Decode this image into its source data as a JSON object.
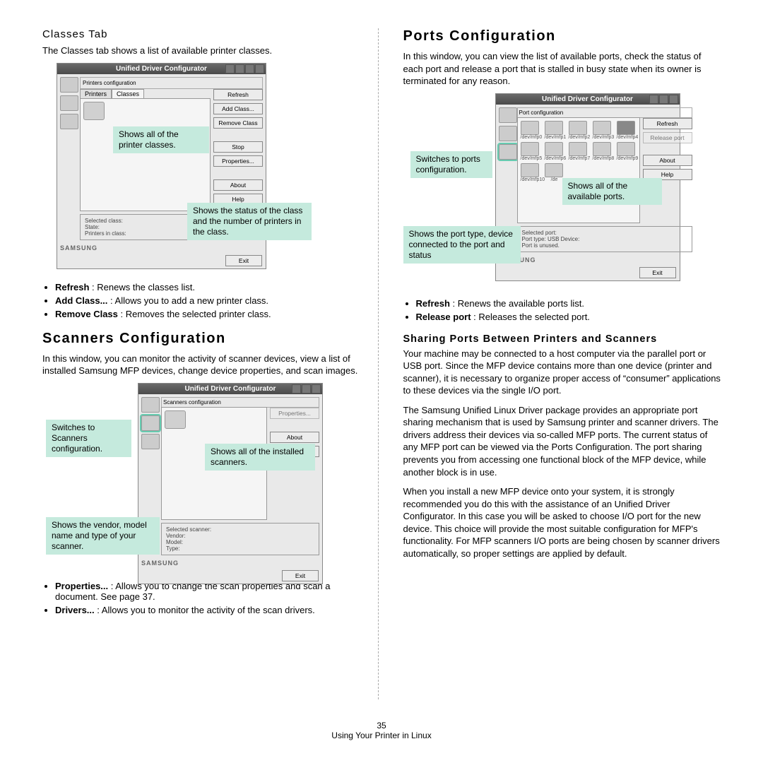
{
  "page_number": "35",
  "footer_text": "Using Your Printer in Linux",
  "left": {
    "classes_heading": "Classes Tab",
    "classes_intro": "The Classes tab shows a list of available printer classes.",
    "fig1": {
      "title": "Unified Driver Configurator",
      "tabs": [
        "Printers",
        "Classes"
      ],
      "buttons": [
        "Refresh",
        "Add Class...",
        "Remove Class",
        "Stop",
        "Properties...",
        "About",
        "Help"
      ],
      "status_label": "Selected class:",
      "status_lines": [
        "State:",
        "Printers in class:"
      ],
      "brand": "SAMSUNG",
      "exit": "Exit"
    },
    "callout1": "Shows all of the printer classes.",
    "callout2": "Shows the status of the class and the number of printers in the class.",
    "classes_bullets": [
      {
        "b": "Refresh",
        "t": " : Renews the classes list."
      },
      {
        "b": "Add Class...",
        "t": " : Allows you to add a new printer class."
      },
      {
        "b": "Remove Class",
        "t": " : Removes the selected printer class."
      }
    ],
    "scanners_heading": "Scanners Configuration",
    "scanners_intro": "In this window, you can monitor the activity of scanner devices, view a list of installed Samsung MFP devices, change device properties, and scan images.",
    "fig2": {
      "title": "Unified Driver Configurator",
      "section": "Scanners configuration",
      "buttons": [
        "Properties...",
        "About",
        "Help"
      ],
      "status_label": "Selected scanner:",
      "status_lines": [
        "Vendor:",
        "Model:",
        "Type:"
      ],
      "brand": "SAMSUNG",
      "exit": "Exit"
    },
    "callout3": "Switches to Scanners configuration.",
    "callout4": "Shows all of the installed scanners.",
    "callout5": "Shows the vendor, model name and type of your scanner.",
    "scanners_bullets": [
      {
        "b": "Properties...",
        "t": " : Allows you to change the scan properties and scan a document. See page 37."
      },
      {
        "b": "Drivers...",
        "t": " : Allows you to monitor the activity of the scan drivers."
      }
    ]
  },
  "right": {
    "ports_heading": "Ports Configuration",
    "ports_intro": "In this window, you can view the list of available ports, check the status of each port and release a port that is stalled in busy state when its owner is terminated for any reason.",
    "fig3": {
      "title": "Unified Driver Configurator",
      "section": "Port configuration",
      "port_labels": [
        "/dev/mfp0",
        "/dev/mfp1",
        "/dev/mfp2",
        "/dev/mfp3",
        "/dev/mfp4",
        "/dev/mfp5",
        "/dev/mfp6",
        "/dev/mfp7",
        "/dev/mfp8",
        "/dev/mfp9",
        "/dev/mfp10",
        "/de"
      ],
      "buttons": [
        "Refresh",
        "Release port",
        "About",
        "Help"
      ],
      "status_label": "Selected port:",
      "status_lines": [
        "Port type: USB   Device:",
        "Port is unused."
      ],
      "brand": "SAMSUNG",
      "exit": "Exit"
    },
    "callout6": "Switches to ports configuration.",
    "callout7": "Shows all of the available ports.",
    "callout8": "Shows the port type, device connected to the port and status",
    "ports_bullets": [
      {
        "b": "Refresh",
        "t": " : Renews the available ports list."
      },
      {
        "b": "Release port",
        "t": " : Releases the selected port."
      }
    ],
    "sharing_heading": "Sharing Ports Between Printers and Scanners",
    "sharing_p1": "Your machine may be connected to a host computer via the parallel port or USB port. Since the MFP device contains more than one device (printer and scanner), it is necessary to organize proper access of “consumer” applications to these devices via the single I/O port.",
    "sharing_p2": "The Samsung Unified Linux Driver package provides an appropriate port sharing mechanism that is used by Samsung printer and scanner drivers. The drivers address their devices via so-called MFP ports. The current status of any MFP port can be viewed via the Ports Configuration. The port sharing prevents you from accessing one functional block of the MFP device, while another block is in use.",
    "sharing_p3": "When you install a new MFP device onto your system, it is strongly recommended you do this with the assistance of an Unified Driver Configurator. In this case you will be asked to choose I/O port for the new device. This choice will provide the most suitable configuration for MFP's functionality. For MFP scanners I/O ports are being chosen by scanner drivers automatically, so proper settings are applied by default."
  }
}
